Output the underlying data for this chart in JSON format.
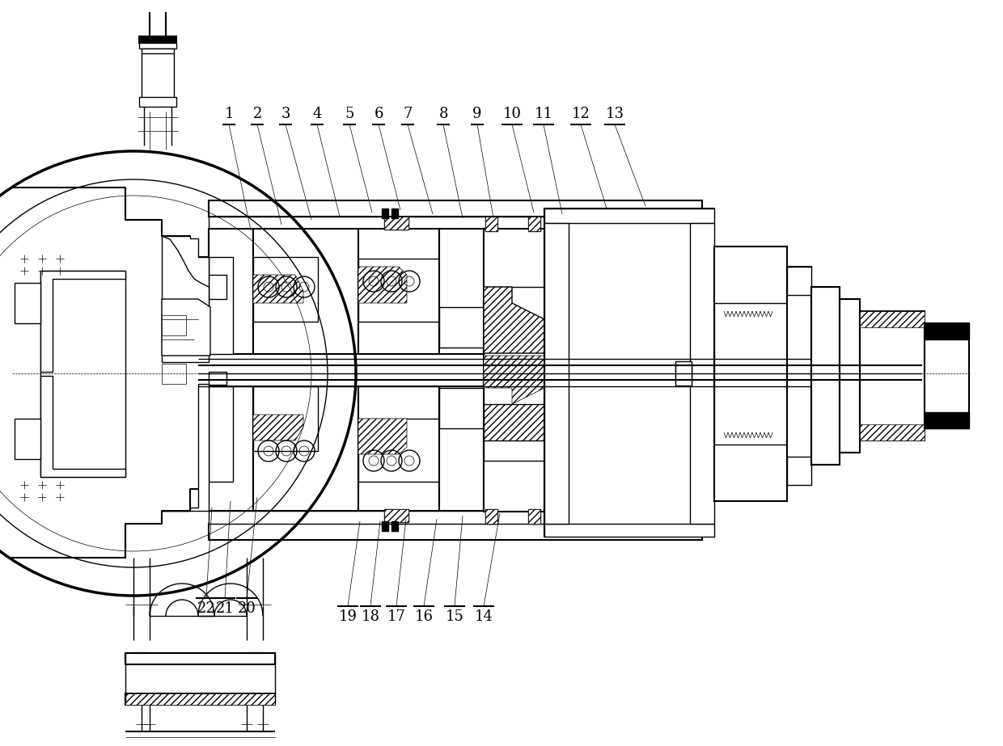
{
  "bg_color": "#ffffff",
  "line_color": "#000000",
  "fig_width": 12.4,
  "fig_height": 9.23,
  "dpi": 100,
  "top_labels": [
    [
      "1",
      283,
      152,
      310,
      285
    ],
    [
      "2",
      318,
      152,
      348,
      278
    ],
    [
      "3",
      353,
      152,
      385,
      272
    ],
    [
      "4",
      392,
      152,
      420,
      268
    ],
    [
      "5",
      432,
      152,
      460,
      263
    ],
    [
      "6",
      468,
      152,
      495,
      260
    ],
    [
      "7",
      504,
      152,
      535,
      265
    ],
    [
      "8",
      548,
      152,
      572,
      270
    ],
    [
      "9",
      590,
      152,
      610,
      270
    ],
    [
      "10",
      633,
      152,
      660,
      263
    ],
    [
      "11",
      672,
      152,
      695,
      265
    ],
    [
      "12",
      718,
      152,
      750,
      258
    ],
    [
      "13",
      760,
      152,
      798,
      255
    ]
  ],
  "bot_labels": [
    [
      "22",
      255,
      742,
      262,
      628
    ],
    [
      "21",
      278,
      742,
      285,
      620
    ],
    [
      "20",
      305,
      742,
      318,
      615
    ],
    [
      "19",
      430,
      752,
      445,
      645
    ],
    [
      "18",
      458,
      752,
      470,
      645
    ],
    [
      "17",
      490,
      752,
      502,
      642
    ],
    [
      "16",
      524,
      752,
      540,
      642
    ],
    [
      "15",
      562,
      752,
      572,
      638
    ],
    [
      "14",
      598,
      752,
      618,
      635
    ]
  ]
}
